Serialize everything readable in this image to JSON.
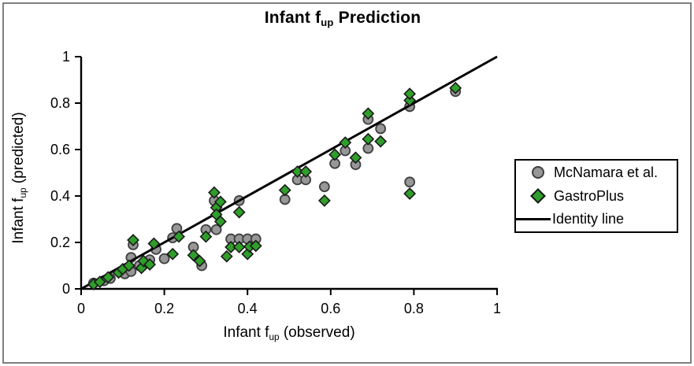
{
  "page": {
    "border_color": "#7f7f7f",
    "background": "#ffffff"
  },
  "chart_data": {
    "type": "scatter",
    "title": {
      "pre": "Infant f",
      "sub": "up",
      "post": " Prediction"
    },
    "grid": false,
    "legend_position": "right",
    "x_axis": {
      "label": {
        "pre": "Infant f",
        "sub": "up",
        "post": " (observed)"
      },
      "range": [
        0,
        1
      ],
      "ticks": [
        {
          "v": 0,
          "t": "0"
        },
        {
          "v": 0.2,
          "t": "0.2"
        },
        {
          "v": 0.4,
          "t": "0.4"
        },
        {
          "v": 0.6,
          "t": "0.6"
        },
        {
          "v": 0.8,
          "t": "0.8"
        },
        {
          "v": 1,
          "t": "1"
        }
      ]
    },
    "y_axis": {
      "label": {
        "pre": "Infant f",
        "sub": "up",
        "post": " (predicted)"
      },
      "range": [
        0,
        1
      ],
      "ticks": [
        {
          "v": 0,
          "t": "0"
        },
        {
          "v": 0.2,
          "t": "0.2"
        },
        {
          "v": 0.4,
          "t": "0.4"
        },
        {
          "v": 0.6,
          "t": "0.6"
        },
        {
          "v": 0.8,
          "t": "0.8"
        },
        {
          "v": 1,
          "t": "1"
        }
      ]
    },
    "series": [
      {
        "name": "McNamara et al.",
        "marker": "circle",
        "fill": "#979797",
        "stroke": "#3f3f3f",
        "points": [
          [
            0.03,
            0.025
          ],
          [
            0.055,
            0.035
          ],
          [
            0.07,
            0.045
          ],
          [
            0.105,
            0.065
          ],
          [
            0.12,
            0.075
          ],
          [
            0.12,
            0.135
          ],
          [
            0.125,
            0.19
          ],
          [
            0.14,
            0.1
          ],
          [
            0.165,
            0.125
          ],
          [
            0.18,
            0.17
          ],
          [
            0.2,
            0.13
          ],
          [
            0.22,
            0.22
          ],
          [
            0.23,
            0.26
          ],
          [
            0.27,
            0.18
          ],
          [
            0.29,
            0.1
          ],
          [
            0.3,
            0.255
          ],
          [
            0.325,
            0.255
          ],
          [
            0.32,
            0.38
          ],
          [
            0.36,
            0.215
          ],
          [
            0.38,
            0.215
          ],
          [
            0.38,
            0.38
          ],
          [
            0.4,
            0.215
          ],
          [
            0.42,
            0.215
          ],
          [
            0.49,
            0.385
          ],
          [
            0.52,
            0.47
          ],
          [
            0.54,
            0.47
          ],
          [
            0.585,
            0.44
          ],
          [
            0.61,
            0.54
          ],
          [
            0.635,
            0.595
          ],
          [
            0.66,
            0.535
          ],
          [
            0.69,
            0.605
          ],
          [
            0.69,
            0.73
          ],
          [
            0.72,
            0.69
          ],
          [
            0.79,
            0.46
          ],
          [
            0.79,
            0.785
          ],
          [
            0.9,
            0.85
          ]
        ]
      },
      {
        "name": "GastroPlus",
        "marker": "diamond",
        "fill": "#2f9e2a",
        "stroke": "#1a1a1a",
        "points": [
          [
            0.03,
            0.02
          ],
          [
            0.045,
            0.03
          ],
          [
            0.065,
            0.05
          ],
          [
            0.09,
            0.07
          ],
          [
            0.1,
            0.085
          ],
          [
            0.115,
            0.1
          ],
          [
            0.125,
            0.21
          ],
          [
            0.145,
            0.09
          ],
          [
            0.15,
            0.12
          ],
          [
            0.165,
            0.105
          ],
          [
            0.175,
            0.195
          ],
          [
            0.22,
            0.15
          ],
          [
            0.235,
            0.225
          ],
          [
            0.27,
            0.145
          ],
          [
            0.285,
            0.12
          ],
          [
            0.3,
            0.225
          ],
          [
            0.32,
            0.415
          ],
          [
            0.325,
            0.35
          ],
          [
            0.325,
            0.32
          ],
          [
            0.335,
            0.375
          ],
          [
            0.335,
            0.29
          ],
          [
            0.35,
            0.14
          ],
          [
            0.36,
            0.18
          ],
          [
            0.38,
            0.18
          ],
          [
            0.38,
            0.33
          ],
          [
            0.4,
            0.15
          ],
          [
            0.405,
            0.182
          ],
          [
            0.42,
            0.185
          ],
          [
            0.49,
            0.425
          ],
          [
            0.52,
            0.505
          ],
          [
            0.54,
            0.505
          ],
          [
            0.585,
            0.38
          ],
          [
            0.61,
            0.578
          ],
          [
            0.635,
            0.63
          ],
          [
            0.66,
            0.565
          ],
          [
            0.69,
            0.645
          ],
          [
            0.69,
            0.755
          ],
          [
            0.72,
            0.635
          ],
          [
            0.79,
            0.41
          ],
          [
            0.79,
            0.812
          ],
          [
            0.79,
            0.84
          ],
          [
            0.9,
            0.865
          ]
        ]
      }
    ],
    "identity_line": {
      "label": "Identity line",
      "color": "#000000",
      "from": [
        0,
        0
      ],
      "to": [
        1,
        1
      ]
    }
  }
}
